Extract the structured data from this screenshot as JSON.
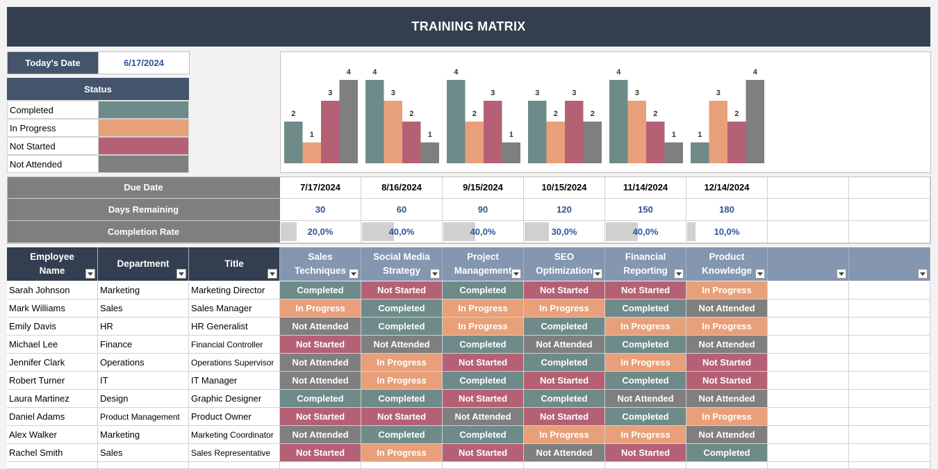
{
  "title": "TRAINING MATRIX",
  "today": {
    "label": "Today's Date",
    "value": "6/17/2024"
  },
  "status_legend": {
    "header": "Status",
    "items": [
      {
        "label": "Completed",
        "color": "#6e8b8a"
      },
      {
        "label": "In Progress",
        "color": "#e8a07a"
      },
      {
        "label": "Not Started",
        "color": "#b56175"
      },
      {
        "label": "Not Attended",
        "color": "#7f7f7f"
      }
    ]
  },
  "chart_data": {
    "type": "bar",
    "categories": [
      "Sales Techniques",
      "Social Media Strategy",
      "Project Management",
      "SEO Optimization",
      "Financial Reporting",
      "Product Knowledge"
    ],
    "series": [
      {
        "name": "Completed",
        "color": "#6e8b8a",
        "values": [
          2,
          4,
          4,
          3,
          4,
          1
        ]
      },
      {
        "name": "In Progress",
        "color": "#e8a07a",
        "values": [
          1,
          3,
          2,
          2,
          3,
          3
        ]
      },
      {
        "name": "Not Started",
        "color": "#b56175",
        "values": [
          3,
          2,
          3,
          3,
          2,
          2
        ]
      },
      {
        "name": "Not Attended",
        "color": "#7f7f7f",
        "values": [
          4,
          1,
          1,
          2,
          1,
          4
        ]
      }
    ],
    "ylim": [
      0,
      4
    ]
  },
  "info": {
    "due_label": "Due Date",
    "days_label": "Days Remaining",
    "rate_label": "Completion Rate",
    "due_dates": [
      "7/17/2024",
      "8/16/2024",
      "9/15/2024",
      "10/15/2024",
      "11/14/2024",
      "12/14/2024",
      "",
      ""
    ],
    "days": [
      "30",
      "60",
      "90",
      "120",
      "150",
      "180",
      "",
      ""
    ],
    "rates": [
      "20,0%",
      "40,0%",
      "40,0%",
      "30,0%",
      "40,0%",
      "10,0%",
      "",
      ""
    ],
    "rate_values": [
      0.2,
      0.4,
      0.4,
      0.3,
      0.4,
      0.1,
      null,
      null
    ]
  },
  "table": {
    "headers": [
      "Employee Name",
      "Department",
      "Title"
    ],
    "course_headers": [
      "Sales Techniques",
      "Social Media Strategy",
      "Project Management",
      "SEO Optimization",
      "Financial Reporting",
      "Product Knowledge",
      "",
      ""
    ],
    "rows": [
      {
        "name": "Sarah Johnson",
        "dept": "Marketing",
        "title": "Marketing Director",
        "s": [
          "Completed",
          "Not Started",
          "Completed",
          "Not Started",
          "Not Started",
          "In Progress",
          "",
          ""
        ]
      },
      {
        "name": "Mark Williams",
        "dept": "Sales",
        "title": "Sales Manager",
        "s": [
          "In Progress",
          "Completed",
          "In Progress",
          "In Progress",
          "Completed",
          "Not Attended",
          "",
          ""
        ]
      },
      {
        "name": "Emily Davis",
        "dept": "HR",
        "title": "HR Generalist",
        "s": [
          "Not Attended",
          "Completed",
          "In Progress",
          "Completed",
          "In Progress",
          "In Progress",
          "",
          ""
        ]
      },
      {
        "name": "Michael Lee",
        "dept": "Finance",
        "title": "Financial Controller",
        "s": [
          "Not Started",
          "Not Attended",
          "Completed",
          "Not Attended",
          "Completed",
          "Not Attended",
          "",
          ""
        ]
      },
      {
        "name": "Jennifer Clark",
        "dept": "Operations",
        "title": "Operations Supervisor",
        "s": [
          "Not Attended",
          "In Progress",
          "Not Started",
          "Completed",
          "In Progress",
          "Not Started",
          "",
          ""
        ]
      },
      {
        "name": "Robert Turner",
        "dept": "IT",
        "title": "IT Manager",
        "s": [
          "Not Attended",
          "In Progress",
          "Completed",
          "Not Started",
          "Completed",
          "Not Started",
          "",
          ""
        ]
      },
      {
        "name": "Laura Martinez",
        "dept": "Design",
        "title": "Graphic Designer",
        "s": [
          "Completed",
          "Completed",
          "Not Started",
          "Completed",
          "Not Attended",
          "Not Attended",
          "",
          ""
        ]
      },
      {
        "name": "Daniel Adams",
        "dept": "Product Management",
        "title": "Product Owner",
        "s": [
          "Not Started",
          "Not Started",
          "Not Attended",
          "Not Started",
          "Completed",
          "In Progress",
          "",
          ""
        ]
      },
      {
        "name": "Alex Walker",
        "dept": "Marketing",
        "title": "Marketing Coordinator",
        "s": [
          "Not Attended",
          "Completed",
          "Completed",
          "In Progress",
          "In Progress",
          "Not Attended",
          "",
          ""
        ]
      },
      {
        "name": "Rachel Smith",
        "dept": "Sales",
        "title": "Sales Representative",
        "s": [
          "Not Started",
          "In Progress",
          "Not Started",
          "Not Attended",
          "Not Started",
          "Completed",
          "",
          ""
        ]
      }
    ]
  }
}
